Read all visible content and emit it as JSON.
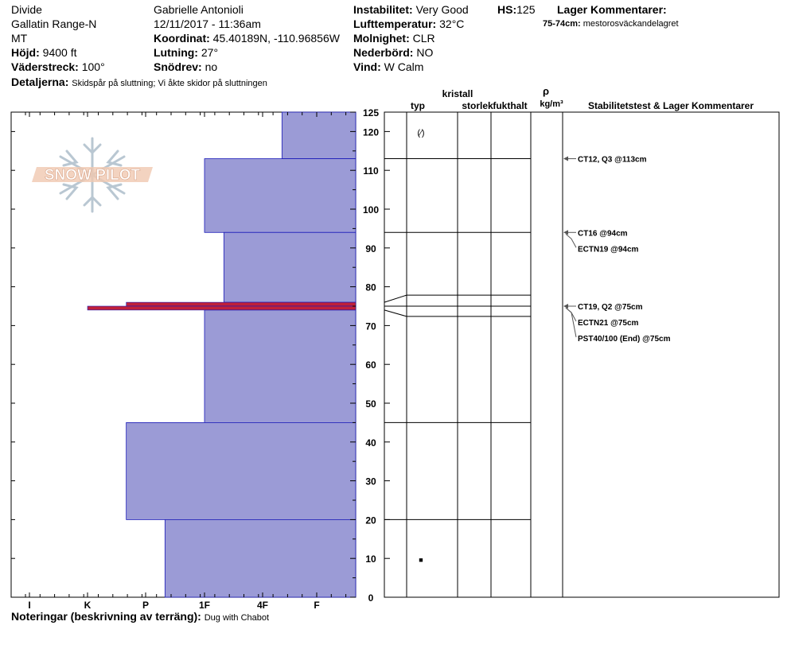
{
  "header": {
    "location": "Divide",
    "range": "Gallatin Range-N",
    "state": "MT",
    "elevation_label": "Höjd:",
    "elevation": "9400 ft",
    "aspect_label": "Väderstreck:",
    "aspect": "100°",
    "details_label": "Detaljerna:",
    "details": "Skidspår på sluttning;  Vi åkte skidor på sluttningen",
    "observer": "Gabrielle Antonioli",
    "datetime": "12/11/2017 - 11:36am",
    "coord_label": "Koordinat:",
    "coord": "45.40189N, -110.96856W",
    "slope_label": "Lutning:",
    "slope": "27°",
    "drift_label": "Snödrev:",
    "drift": "no",
    "instability_label": "Instabilitet:",
    "instability": "Very Good",
    "hs_label": "HS:",
    "hs": "125",
    "airtemp_label": "Lufttemperatur:",
    "airtemp": "32°C",
    "clouds_label": "Molnighet:",
    "clouds": "CLR",
    "precip_label": "Nederbörd:",
    "precip": "NO",
    "wind_label": "Vind:",
    "wind": "W Calm",
    "layer_comments_title": "Lager Kommentarer:",
    "layer_comment_range": "75-74cm:",
    "layer_comment_text": "mestorosväckandelagret",
    "notes_label": "Noteringar (beskrivning av terräng):",
    "notes": "Dug with Chabot"
  },
  "logo": {
    "text": "SNOW PILOT"
  },
  "columns": {
    "crystal": "kristall",
    "type": "typ",
    "size": "storlek",
    "moisture": "fukthalt",
    "rho": "ρ",
    "density_unit": "kg/m³",
    "stability": "Stabilitetstest & Lager Kommentarer"
  },
  "colors": {
    "hardness_fill": "#9b9bd6",
    "hardness_edge": "#1a1ab8",
    "weak_layer": "#c0203a"
  },
  "chart_data": {
    "type": "bar",
    "orientation": "horizontal",
    "y_unit": "cm",
    "ylim": [
      0,
      125
    ],
    "yticks": [
      0,
      10,
      20,
      30,
      40,
      50,
      60,
      70,
      80,
      90,
      100,
      110,
      120,
      125
    ],
    "hardness_scale": [
      "I",
      "K",
      "P",
      "1F",
      "4F",
      "F"
    ],
    "layers": [
      {
        "top": 125,
        "bottom": 113,
        "hardness": "4F-"
      },
      {
        "top": 113,
        "bottom": 94,
        "hardness": "1F"
      },
      {
        "top": 94,
        "bottom": 76,
        "hardness": "1F-"
      },
      {
        "top": 76,
        "bottom": 75,
        "hardness": "P+"
      },
      {
        "top": 75,
        "bottom": 74,
        "hardness": "K"
      },
      {
        "top": 74,
        "bottom": 45,
        "hardness": "1F"
      },
      {
        "top": 45,
        "bottom": 20,
        "hardness": "P+"
      },
      {
        "top": 20,
        "bottom": 0,
        "hardness": "P-"
      }
    ],
    "grain_symbols": [
      {
        "height": 120,
        "symbol": "(⁄)"
      },
      {
        "height": 10,
        "symbol": "■"
      }
    ],
    "tests": [
      {
        "height": 113,
        "label": "CT12, Q3 @113cm"
      },
      {
        "height": 94,
        "label": "CT16 @94cm"
      },
      {
        "height": 94,
        "label": "ECTN19 @94cm"
      },
      {
        "height": 75,
        "label": "CT19, Q2 @75cm"
      },
      {
        "height": 75,
        "label": "ECTN21 @75cm"
      },
      {
        "height": 75,
        "label": "PST40/100 (End) @75cm"
      }
    ]
  }
}
